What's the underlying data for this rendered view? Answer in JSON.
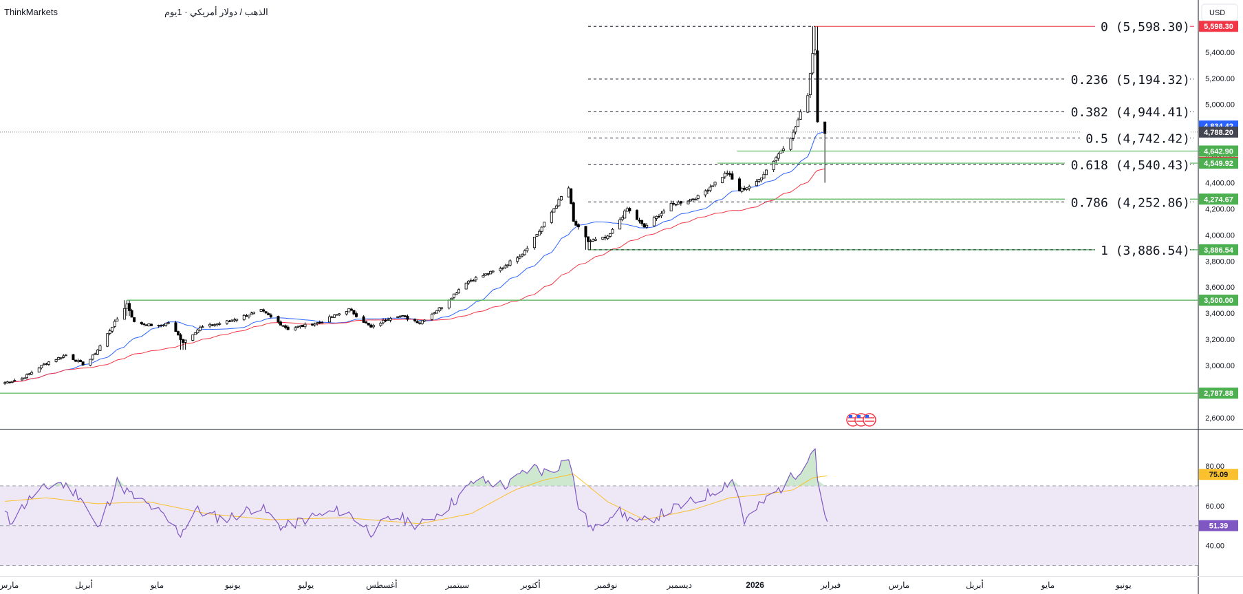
{
  "header": {
    "broker": "ThinkMarkets",
    "symbol_line": "الذهب / دولار أمريكي · 1يوم"
  },
  "currency_button": "USD",
  "colors": {
    "candle_up": "#ffffff",
    "candle_down": "#000000",
    "ma_fast": "#2962ff",
    "ma_slow": "#f23645",
    "level_line": "#4caf50",
    "fib_line": "#131722",
    "fib_top_line": "#f23645",
    "rsi_line": "#7e57c2",
    "rsi_ma": "#fbc02d",
    "rsi_band": "#ede7f6",
    "rsi_overbought_fill": "#c8e6c9"
  },
  "chart_data": [
    {
      "type": "candlestick",
      "title": "",
      "timeframe": "1D",
      "y_axis": {
        "ylim": [
          2520,
          5800
        ],
        "ticks": [
          "2,600.00",
          "2,800.00",
          "3,000.00",
          "3,200.00",
          "3,400.00",
          "3,600.00",
          "3,800.00",
          "4,000.00",
          "4,200.00",
          "4,400.00",
          "4,600.00",
          "4,800.00",
          "5,000.00",
          "5,200.00",
          "5,400.00"
        ],
        "tick_values": [
          2600,
          2800,
          3000,
          3200,
          3400,
          3600,
          3800,
          4000,
          4200,
          4400,
          4600,
          4800,
          5000,
          5200,
          5400
        ]
      },
      "x_axis": {
        "range": [
          "2025-03-01",
          "2026-07-05"
        ],
        "labels": [
          "مارس",
          "أبريل",
          "مايو",
          "يونيو",
          "يوليو",
          "أغسطس",
          "سبتمبر",
          "أكتوبر",
          "نوفمبر",
          "ديسمبر",
          "2026",
          "فبراير",
          "مارس",
          "أبريل",
          "مايو",
          "يونيو"
        ],
        "label_dates": [
          "2025-03-01",
          "2025-04-01",
          "2025-05-01",
          "2025-06-01",
          "2025-07-01",
          "2025-08-01",
          "2025-09-01",
          "2025-10-01",
          "2025-11-01",
          "2025-12-01",
          "2026-01-01",
          "2026-02-01",
          "2026-03-01",
          "2026-04-01",
          "2026-05-01",
          "2026-06-01"
        ],
        "bold_labels": [
          "2026"
        ]
      },
      "price_path": [
        [
          "2025-03-01",
          2860
        ],
        [
          "2025-03-10",
          2900
        ],
        [
          "2025-03-20",
          3020
        ],
        [
          "2025-03-28",
          3080
        ],
        [
          "2025-04-05",
          3000
        ],
        [
          "2025-04-10",
          3120
        ],
        [
          "2025-04-16",
          3300
        ],
        [
          "2025-04-22",
          3470
        ],
        [
          "2025-04-25",
          3330
        ],
        [
          "2025-05-05",
          3300
        ],
        [
          "2025-05-09",
          3330
        ],
        [
          "2025-05-15",
          3180
        ],
        [
          "2025-05-22",
          3290
        ],
        [
          "2025-06-01",
          3330
        ],
        [
          "2025-06-16",
          3420
        ],
        [
          "2025-06-27",
          3280
        ],
        [
          "2025-07-10",
          3330
        ],
        [
          "2025-07-22",
          3430
        ],
        [
          "2025-07-31",
          3290
        ],
        [
          "2025-08-10",
          3390
        ],
        [
          "2025-08-20",
          3330
        ],
        [
          "2025-08-29",
          3450
        ],
        [
          "2025-09-08",
          3640
        ],
        [
          "2025-09-22",
          3740
        ],
        [
          "2025-10-01",
          3860
        ],
        [
          "2025-10-08",
          4030
        ],
        [
          "2025-10-17",
          4290
        ],
        [
          "2025-10-20",
          4360
        ],
        [
          "2025-10-22",
          4100
        ],
        [
          "2025-10-28",
          3950
        ],
        [
          "2025-11-05",
          3980
        ],
        [
          "2025-11-13",
          4200
        ],
        [
          "2025-11-20",
          4060
        ],
        [
          "2025-12-01",
          4230
        ],
        [
          "2025-12-12",
          4290
        ],
        [
          "2025-12-24",
          4480
        ],
        [
          "2025-12-29",
          4340
        ],
        [
          "2026-01-05",
          4400
        ],
        [
          "2026-01-14",
          4620
        ],
        [
          "2026-01-20",
          4780
        ],
        [
          "2026-01-26",
          5080
        ],
        [
          "2026-01-28",
          5400
        ],
        [
          "2026-01-29",
          5420
        ],
        [
          "2026-01-30",
          4880
        ],
        [
          "2026-02-02",
          4788.2
        ]
      ],
      "events": [
        {
          "date": "2025-04-22",
          "high": 3500,
          "low": 3380
        },
        {
          "date": "2025-05-15",
          "low": 3120
        },
        {
          "date": "2025-10-28",
          "low": 3886.54
        },
        {
          "date": "2026-01-29",
          "high": 5598.3
        },
        {
          "date": "2026-02-02",
          "high": 4830,
          "low": 4400
        }
      ],
      "moving_averages": [
        {
          "period": 20,
          "color": "#2962ff",
          "last_value": "4,834.42"
        },
        {
          "period": 50,
          "color": "#f23645",
          "last_value": "4,556.02"
        }
      ],
      "last_price": {
        "value": 4788.2,
        "label": "4,788.20"
      },
      "fibonacci": {
        "start_date": "2025-10-28",
        "end_date": "2026-01-29",
        "high": 5598.3,
        "low": 3886.54,
        "levels": [
          {
            "ratio": "0",
            "value": 5598.3,
            "text": "0 (5,598.30)"
          },
          {
            "ratio": "0.236",
            "value": 5194.32,
            "text": "0.236 (5,194.32)"
          },
          {
            "ratio": "0.382",
            "value": 4944.41,
            "text": "0.382 (4,944.41)"
          },
          {
            "ratio": "0.5",
            "value": 4742.42,
            "text": "0.5 (4,742.42)"
          },
          {
            "ratio": "0.618",
            "value": 4540.43,
            "text": "0.618 (4,540.43)"
          },
          {
            "ratio": "0.786",
            "value": 4252.86,
            "text": "0.786 (4,252.86)"
          },
          {
            "ratio": "1",
            "value": 3886.54,
            "text": "1 (3,886.54)"
          }
        ]
      },
      "horizontal_levels": [
        {
          "value": 4642.9,
          "label": "4,642.90",
          "start_date": "2025-12-28"
        },
        {
          "value": 4549.92,
          "label": "4,549.92",
          "start_date": "2025-12-20"
        },
        {
          "value": 4274.67,
          "label": "4,274.67",
          "start_date": "2026-01-02"
        },
        {
          "value": 3886.54,
          "label": "3,886.54",
          "start_date": "2025-10-28"
        },
        {
          "value": 3500.0,
          "label": "3,500.00",
          "start_date": "2025-04-22"
        },
        {
          "value": 2787.88,
          "label": "2,787.88",
          "start_date": "2025-03-01"
        }
      ],
      "axis_badges": [
        {
          "label": "5,598.30",
          "value": 5598.3,
          "color": "#f23645"
        },
        {
          "label": "4,834.42",
          "value": 4834.42,
          "color": "#2962ff"
        },
        {
          "label": "4,788.20",
          "value": 4788.2,
          "color": "#434651"
        },
        {
          "label": "4,642.90",
          "value": 4642.9,
          "color": "#4caf50"
        },
        {
          "label": "4,556.02",
          "value": 4556.02,
          "color": "#f23645"
        },
        {
          "label": "4,549.92",
          "value": 4549.92,
          "color": "#4caf50"
        },
        {
          "label": "4,274.67",
          "value": 4274.67,
          "color": "#4caf50"
        },
        {
          "label": "3,886.54",
          "value": 3886.54,
          "color": "#4caf50"
        },
        {
          "label": "3,500.00",
          "value": 3500.0,
          "color": "#4caf50"
        },
        {
          "label": "2,787.88",
          "value": 2787.88,
          "color": "#4caf50"
        }
      ]
    },
    {
      "type": "line",
      "title": "",
      "indicator": "RSI",
      "ylim": [
        25,
        98
      ],
      "y_ticks": [
        "80.00",
        "60.00",
        "40.00"
      ],
      "y_tick_values": [
        80,
        60,
        40
      ],
      "upper_band": 70,
      "lower_band": 30,
      "middle_line": 50,
      "series": [
        {
          "color": "#7e57c2",
          "last_value": "51.39",
          "points": [
            [
              "2025-03-01",
              61
            ],
            [
              "2025-03-05",
              52
            ],
            [
              "2025-03-15",
              66
            ],
            [
              "2025-03-25",
              72
            ],
            [
              "2025-04-03",
              65
            ],
            [
              "2025-04-10",
              48
            ],
            [
              "2025-04-18",
              72
            ],
            [
              "2025-04-24",
              65
            ],
            [
              "2025-05-04",
              58
            ],
            [
              "2025-05-14",
              46
            ],
            [
              "2025-05-20",
              58
            ],
            [
              "2025-06-01",
              53
            ],
            [
              "2025-06-15",
              60
            ],
            [
              "2025-06-25",
              49
            ],
            [
              "2025-07-06",
              54
            ],
            [
              "2025-07-20",
              58
            ],
            [
              "2025-07-31",
              47
            ],
            [
              "2025-08-10",
              55
            ],
            [
              "2025-08-20",
              50
            ],
            [
              "2025-09-01",
              60
            ],
            [
              "2025-09-12",
              73
            ],
            [
              "2025-09-25",
              70
            ],
            [
              "2025-10-05",
              80
            ],
            [
              "2025-10-12",
              76
            ],
            [
              "2025-10-20",
              85
            ],
            [
              "2025-10-24",
              60
            ],
            [
              "2025-10-30",
              47
            ],
            [
              "2025-11-08",
              58
            ],
            [
              "2025-11-18",
              51
            ],
            [
              "2025-12-01",
              58
            ],
            [
              "2025-12-12",
              63
            ],
            [
              "2025-12-22",
              70
            ],
            [
              "2025-12-27",
              74
            ],
            [
              "2025-12-31",
              52
            ],
            [
              "2026-01-08",
              62
            ],
            [
              "2026-01-16",
              70
            ],
            [
              "2026-01-24",
              80
            ],
            [
              "2026-01-29",
              90
            ],
            [
              "2026-01-31",
              56
            ],
            [
              "2026-02-03",
              51.39
            ]
          ]
        },
        {
          "color": "#fbc02d",
          "last_value": "75.09",
          "points": [
            [
              "2025-03-01",
              62
            ],
            [
              "2025-03-20",
              64
            ],
            [
              "2025-04-10",
              61
            ],
            [
              "2025-05-01",
              62
            ],
            [
              "2025-05-25",
              56
            ],
            [
              "2025-06-20",
              53
            ],
            [
              "2025-07-20",
              54
            ],
            [
              "2025-08-20",
              51
            ],
            [
              "2025-09-10",
              56
            ],
            [
              "2025-09-28",
              68
            ],
            [
              "2025-10-10",
              73
            ],
            [
              "2025-10-22",
              76
            ],
            [
              "2025-11-05",
              62
            ],
            [
              "2025-11-20",
              53
            ],
            [
              "2025-12-10",
              58
            ],
            [
              "2025-12-25",
              64
            ],
            [
              "2026-01-10",
              66
            ],
            [
              "2026-01-20",
              68
            ],
            [
              "2026-01-28",
              74
            ],
            [
              "2026-02-03",
              75.09
            ]
          ]
        }
      ]
    }
  ]
}
